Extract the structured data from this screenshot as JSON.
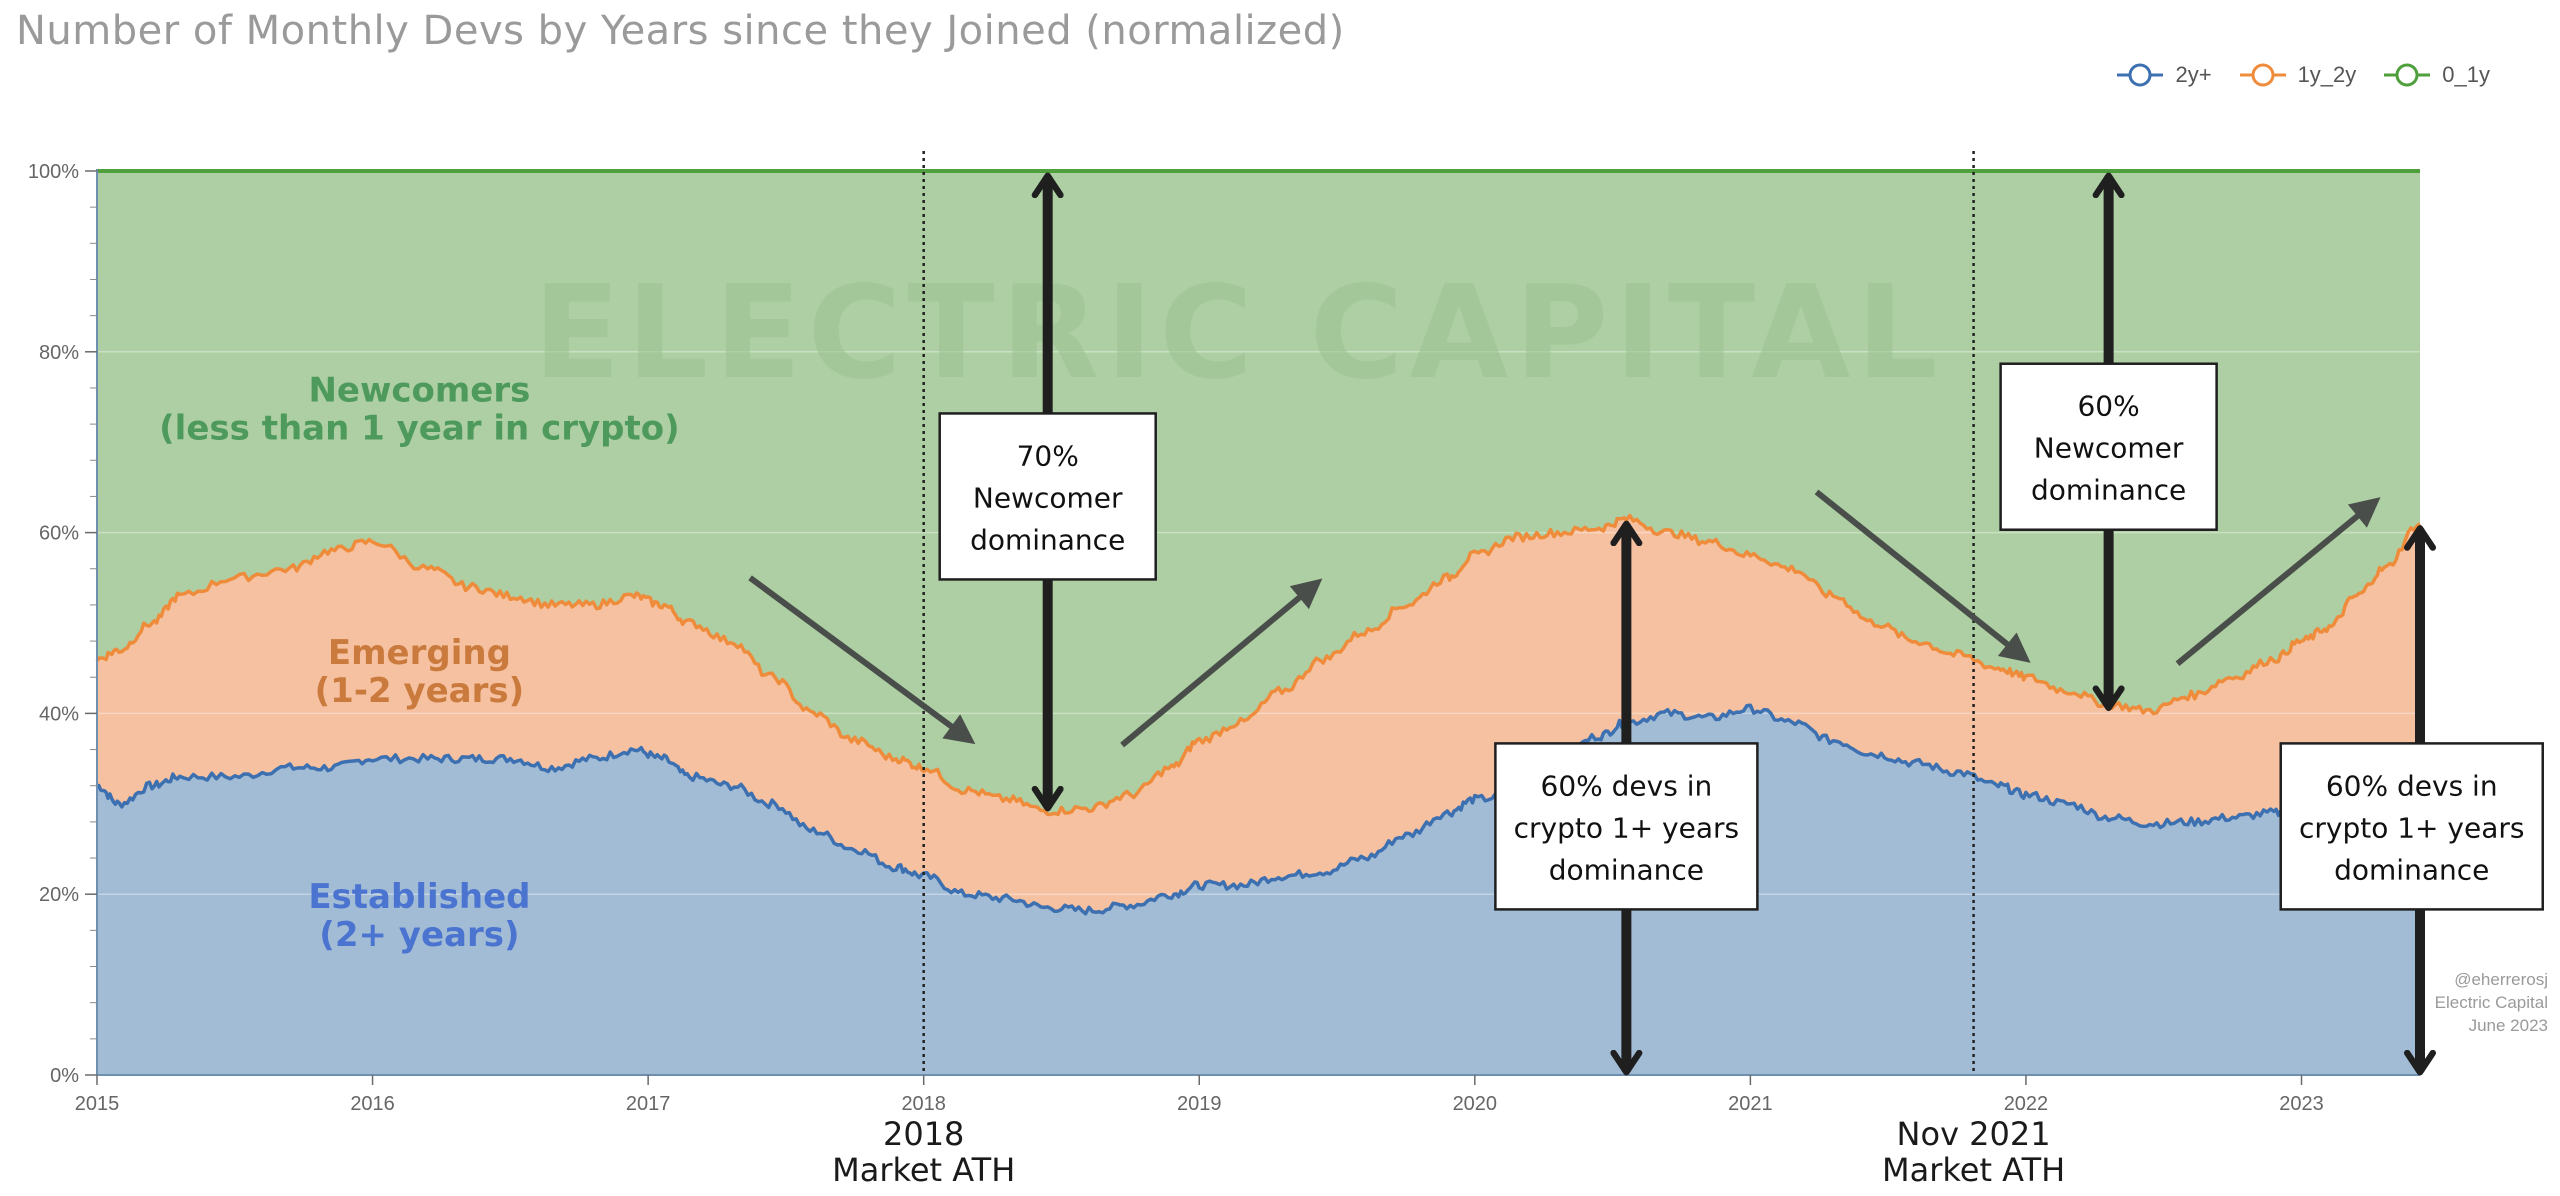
{
  "chart_data": {
    "type": "area",
    "stacked": true,
    "normalized": true,
    "title": "Number of Monthly Devs by Years since they Joined (normalized)",
    "ylim": [
      0,
      100
    ],
    "y_ticks": [
      "0%",
      "20%",
      "40%",
      "60%",
      "80%",
      "100%"
    ],
    "y_tick_values": [
      0,
      20,
      40,
      60,
      80,
      100
    ],
    "x_ticks": [
      "2015",
      "2016",
      "2017",
      "2018",
      "2019",
      "2020",
      "2021",
      "2022",
      "2023"
    ],
    "x_tick_values": [
      2015,
      2016,
      2017,
      2018,
      2019,
      2020,
      2021,
      2022,
      2023
    ],
    "xlim": [
      2015,
      2023.43
    ],
    "legend_position": "top-right",
    "x": [
      2015.0,
      2015.08,
      2015.2,
      2015.3,
      2015.5,
      2015.7,
      2015.85,
      2016.0,
      2016.2,
      2016.35,
      2016.5,
      2016.65,
      2016.8,
      2016.95,
      2017.05,
      2017.15,
      2017.3,
      2017.45,
      2017.6,
      2017.75,
      2017.9,
      2018.0,
      2018.15,
      2018.3,
      2018.45,
      2018.6,
      2018.75,
      2018.9,
      2019.0,
      2019.15,
      2019.3,
      2019.45,
      2019.6,
      2019.75,
      2019.9,
      2020.0,
      2020.15,
      2020.3,
      2020.45,
      2020.55,
      2020.7,
      2020.85,
      2021.0,
      2021.15,
      2021.3,
      2021.45,
      2021.6,
      2021.75,
      2021.9,
      2022.0,
      2022.15,
      2022.3,
      2022.45,
      2022.6,
      2022.75,
      2022.9,
      2023.0,
      2023.1,
      2023.2,
      2023.3,
      2023.43
    ],
    "series": [
      {
        "name": "2y+",
        "color": "#3d70b0",
        "values": [
          32,
          30,
          32,
          33,
          33,
          34,
          34,
          35,
          35,
          35,
          35,
          34,
          35,
          36,
          35,
          33,
          32,
          30,
          27,
          25,
          23,
          22,
          20,
          19.5,
          18.5,
          18.2,
          18.8,
          20,
          21,
          21,
          22,
          22.5,
          24,
          26.5,
          29,
          30.5,
          31,
          35,
          37.5,
          39,
          40,
          39.5,
          40.5,
          39,
          37,
          35.5,
          34.5,
          33.5,
          32,
          31,
          30,
          28.5,
          27.8,
          28,
          28.5,
          29,
          29,
          29,
          28.8,
          28.5,
          28.5
        ]
      },
      {
        "name": "1y_2y",
        "color": "#ef8c3b",
        "values": [
          46,
          47,
          50,
          53,
          55,
          56,
          58,
          59,
          56,
          54,
          53,
          52,
          52,
          53,
          52,
          50,
          48,
          44,
          40,
          37,
          35,
          34,
          31.5,
          30.5,
          29.2,
          29.5,
          31,
          34,
          37,
          39,
          42.5,
          46,
          49,
          52,
          55,
          57.5,
          59.5,
          60,
          60.5,
          61.5,
          60,
          59,
          57.5,
          56,
          53,
          50,
          48,
          46.5,
          45,
          44,
          42.5,
          41,
          40.3,
          42,
          44,
          46,
          48,
          49.5,
          53,
          56,
          61
        ]
      },
      {
        "name": "0_1y",
        "color": "#4f9f3c",
        "values": [
          100,
          100,
          100,
          100,
          100,
          100,
          100,
          100,
          100,
          100,
          100,
          100,
          100,
          100,
          100,
          100,
          100,
          100,
          100,
          100,
          100,
          100,
          100,
          100,
          100,
          100,
          100,
          100,
          100,
          100,
          100,
          100,
          100,
          100,
          100,
          100,
          100,
          100,
          100,
          100,
          100,
          100,
          100,
          100,
          100,
          100,
          100,
          100,
          100,
          100,
          100,
          100,
          100,
          100,
          100,
          100,
          100,
          100,
          100,
          100,
          100
        ]
      }
    ],
    "fill_colors": {
      "2y+": "#a3bcd6",
      "1y_2y": "#f6c1a0",
      "0_1y": "#adcfa3"
    },
    "region_labels": [
      {
        "line1": "Newcomers",
        "line2": "(less than 1 year in crypto)",
        "color": "#4e9a5c",
        "x": 2016.17,
        "y": 72.5
      },
      {
        "line1": "Emerging",
        "line2": "(1-2 years)",
        "color": "#c97a3c",
        "x": 2016.17,
        "y": 43.5
      },
      {
        "line1": "Established",
        "line2": "(2+ years)",
        "color": "#4a74d0",
        "x": 2016.17,
        "y": 16.5
      }
    ],
    "vertical_markers": [
      {
        "x": 2018.0,
        "line1": "2018",
        "line2": "Market ATH"
      },
      {
        "x": 2021.81,
        "line1": "Nov 2021",
        "line2": "Market ATH"
      }
    ],
    "annotation_boxes": [
      {
        "lines": [
          "70%",
          "Newcomer",
          "dominance"
        ],
        "x": 2018.45,
        "y": 64
      },
      {
        "lines": [
          "60%",
          "Newcomer",
          "dominance"
        ],
        "x": 2022.3,
        "y": 69.5
      },
      {
        "lines": [
          "60% devs in",
          "crypto 1+ years",
          "dominance"
        ],
        "x": 2020.55,
        "y": 27.5
      },
      {
        "lines": [
          "60% devs in",
          "crypto 1+ years",
          "dominance"
        ],
        "x": 2023.4,
        "y": 27.5
      }
    ],
    "double_arrows": [
      {
        "x": 2018.45,
        "y_from": 29.2,
        "y_to": 100
      },
      {
        "x": 2022.3,
        "y_from": 40.3,
        "y_to": 100
      },
      {
        "x": 2020.55,
        "y_from": 0,
        "y_to": 61.5
      },
      {
        "x": 2023.43,
        "y_from": 0,
        "y_to": 61
      }
    ],
    "trend_arrows": [
      {
        "x1": 2017.37,
        "y1": 55,
        "x2": 2018.17,
        "y2": 37
      },
      {
        "x1": 2018.72,
        "y1": 36.5,
        "x2": 2019.43,
        "y2": 54.5
      },
      {
        "x1": 2021.24,
        "y1": 64.5,
        "x2": 2022.0,
        "y2": 46
      },
      {
        "x1": 2022.55,
        "y1": 45.5,
        "x2": 2023.27,
        "y2": 63.5
      }
    ],
    "watermark": "ELECTRIC CAPITAL",
    "credit": [
      "@eherrerosj",
      "Electric Capital",
      "June 2023"
    ]
  }
}
